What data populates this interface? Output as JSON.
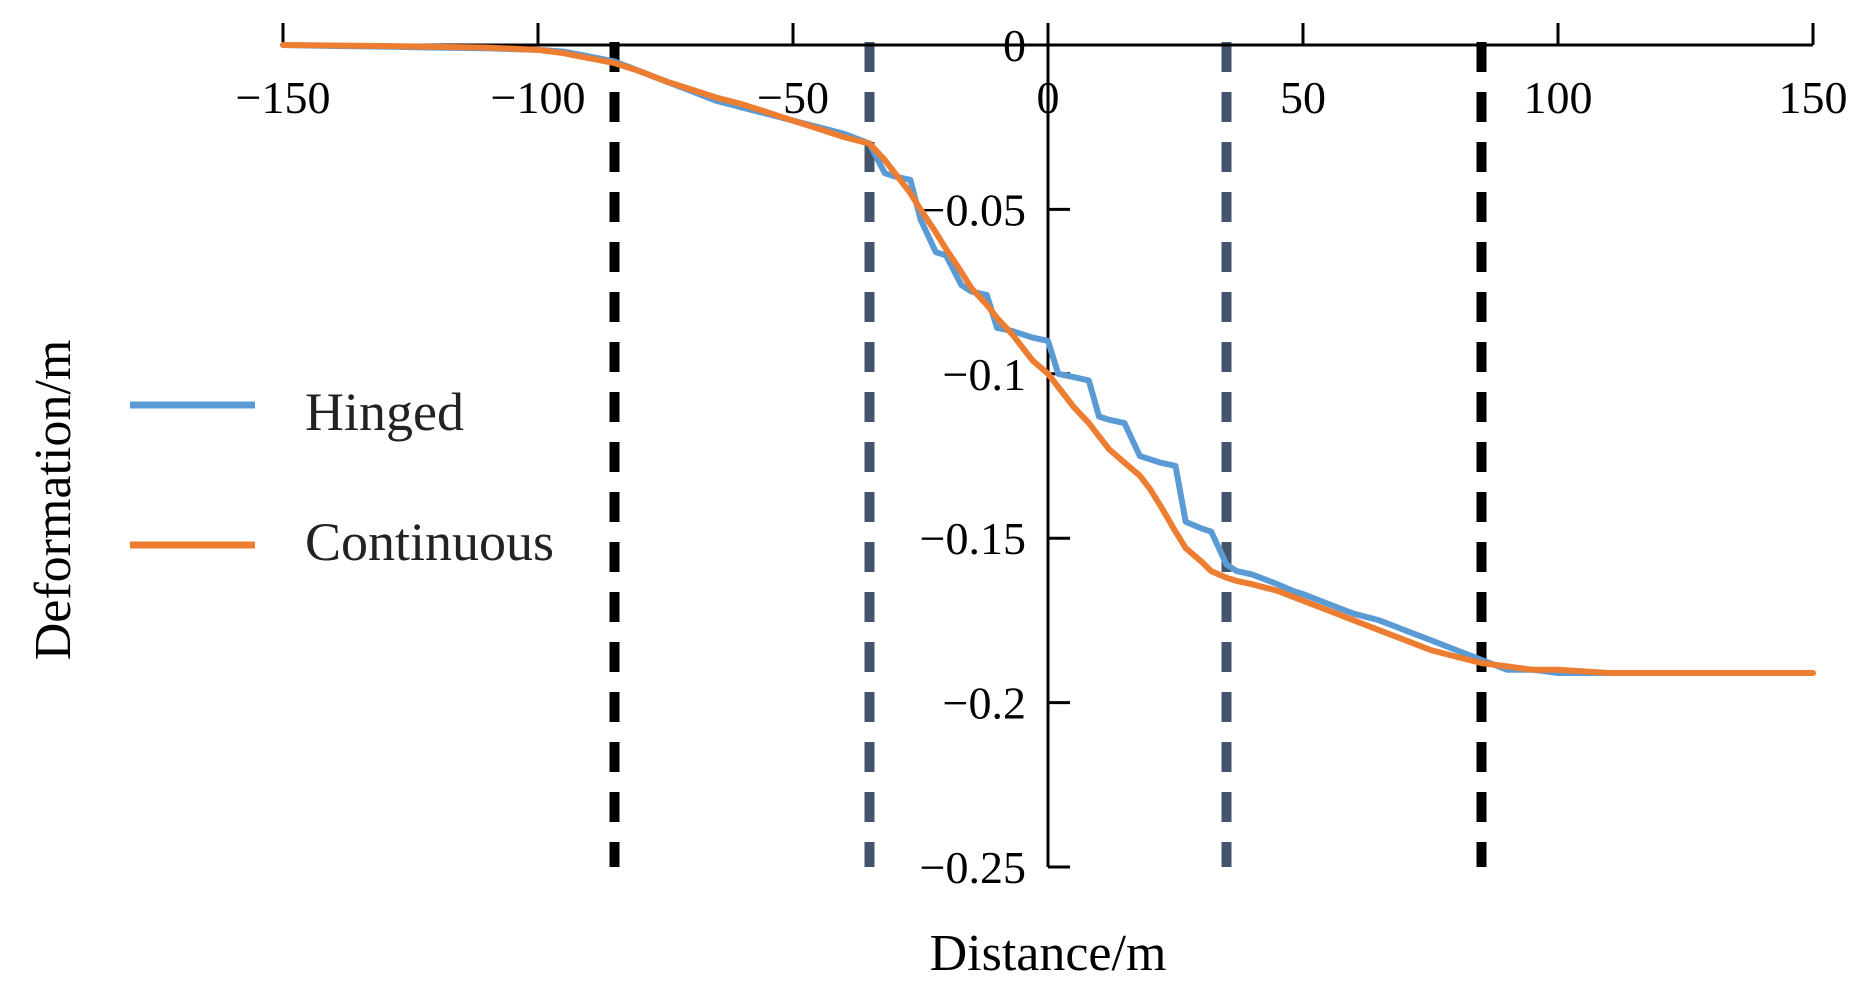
{
  "chart_data": {
    "type": "line",
    "title": "",
    "xlabel": "Distance/m",
    "ylabel": "Deformation/m",
    "xlim": [
      -150,
      150
    ],
    "ylim": [
      -0.25,
      0
    ],
    "x_ticks": [
      -150,
      -100,
      -50,
      0,
      50,
      100,
      150
    ],
    "x_tick_labels": [
      "−150",
      "−100",
      "−50",
      "0",
      "50",
      "100",
      "150"
    ],
    "y_ticks": [
      0,
      -0.05,
      -0.1,
      -0.15,
      -0.2,
      -0.25
    ],
    "y_tick_labels": [
      "0",
      "−0.05",
      "−0.1",
      "−0.15",
      "−0.2",
      "−0.25"
    ],
    "grid": false,
    "legend_position": "left",
    "series": [
      {
        "name": "Hinged",
        "color": "#5b9bd5",
        "x": [
          -150,
          -140,
          -130,
          -120,
          -110,
          -100,
          -95,
          -90,
          -85,
          -80,
          -75,
          -70,
          -65,
          -60,
          -55,
          -50,
          -45,
          -40,
          -35,
          -32,
          -30,
          -27,
          -25,
          -22,
          -20,
          -17,
          -15,
          -12,
          -10,
          -7,
          -5,
          -3,
          0,
          2,
          5,
          8,
          10,
          12,
          15,
          18,
          20,
          22,
          25,
          27,
          30,
          32,
          35,
          37,
          40,
          45,
          48,
          50,
          55,
          60,
          65,
          70,
          75,
          80,
          85,
          90,
          95,
          100,
          105,
          110,
          115
        ],
        "values": [
          0,
          -0.0003,
          -0.0005,
          -0.0008,
          -0.001,
          -0.0015,
          -0.002,
          -0.0035,
          -0.005,
          -0.008,
          -0.011,
          -0.014,
          -0.017,
          -0.019,
          -0.021,
          -0.023,
          -0.025,
          -0.027,
          -0.03,
          -0.039,
          -0.04,
          -0.041,
          -0.053,
          -0.063,
          -0.064,
          -0.073,
          -0.075,
          -0.076,
          -0.086,
          -0.087,
          -0.088,
          -0.089,
          -0.09,
          -0.1,
          -0.101,
          -0.102,
          -0.113,
          -0.114,
          -0.115,
          -0.125,
          -0.126,
          -0.127,
          -0.128,
          -0.145,
          -0.147,
          -0.148,
          -0.158,
          -0.16,
          -0.161,
          -0.164,
          -0.166,
          -0.167,
          -0.17,
          -0.173,
          -0.175,
          -0.178,
          -0.181,
          -0.184,
          -0.187,
          -0.19,
          -0.19,
          -0.191,
          -0.191,
          -0.191,
          -0.191
        ]
      },
      {
        "name": "Continuous",
        "color": "#ed7d31",
        "x": [
          -150,
          -130,
          -110,
          -100,
          -95,
          -90,
          -85,
          -80,
          -75,
          -70,
          -65,
          -60,
          -55,
          -50,
          -45,
          -40,
          -35,
          -32,
          -30,
          -27,
          -25,
          -22,
          -20,
          -17,
          -15,
          -12,
          -10,
          -7,
          -5,
          -3,
          0,
          3,
          5,
          8,
          10,
          12,
          15,
          18,
          20,
          22,
          25,
          27,
          30,
          32,
          35,
          37,
          40,
          45,
          50,
          55,
          60,
          65,
          70,
          75,
          80,
          85,
          90,
          95,
          100,
          110,
          120,
          130,
          140,
          150
        ],
        "values": [
          0,
          -0.0003,
          -0.0008,
          -0.0015,
          -0.0025,
          -0.004,
          -0.0055,
          -0.008,
          -0.011,
          -0.0135,
          -0.016,
          -0.018,
          -0.0205,
          -0.023,
          -0.0255,
          -0.028,
          -0.03,
          -0.035,
          -0.039,
          -0.045,
          -0.05,
          -0.057,
          -0.062,
          -0.069,
          -0.074,
          -0.079,
          -0.083,
          -0.088,
          -0.092,
          -0.096,
          -0.1,
          -0.106,
          -0.11,
          -0.115,
          -0.119,
          -0.123,
          -0.127,
          -0.131,
          -0.135,
          -0.14,
          -0.148,
          -0.153,
          -0.157,
          -0.16,
          -0.162,
          -0.163,
          -0.164,
          -0.166,
          -0.169,
          -0.172,
          -0.175,
          -0.178,
          -0.181,
          -0.184,
          -0.186,
          -0.188,
          -0.189,
          -0.19,
          -0.19,
          -0.191,
          -0.191,
          -0.191,
          -0.191,
          -0.191
        ]
      }
    ],
    "reference_lines": [
      {
        "x": -85,
        "color": "#000000"
      },
      {
        "x": -35,
        "color": "#44546a"
      },
      {
        "x": 35,
        "color": "#44546a"
      },
      {
        "x": 85,
        "color": "#000000"
      }
    ]
  }
}
